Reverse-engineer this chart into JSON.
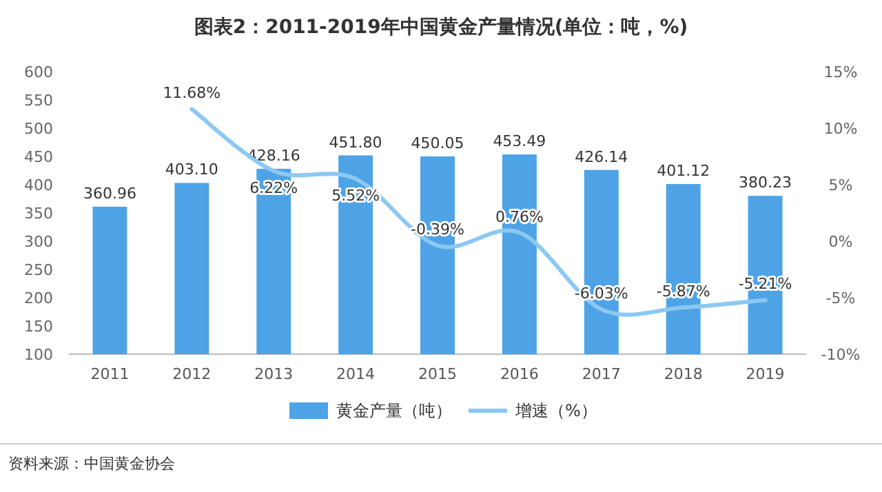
{
  "chart_data": {
    "type": "bar",
    "title": "图表2：2011-2019年中国黄金产量情况(单位：吨，%)",
    "categories": [
      "2011",
      "2012",
      "2013",
      "2014",
      "2015",
      "2016",
      "2017",
      "2018",
      "2019"
    ],
    "series": [
      {
        "name": "黄金产量（吨）",
        "color": "#4da3e6",
        "values": [
          360.96,
          403.1,
          428.16,
          451.8,
          450.05,
          453.49,
          426.14,
          401.12,
          380.23
        ],
        "value_labels": [
          "360.96",
          "403.10",
          "428.16",
          "451.80",
          "450.05",
          "453.49",
          "426.14",
          "401.12",
          "380.23"
        ]
      },
      {
        "name": "增速（%）",
        "type": "line",
        "axis": "y2",
        "color": "#8cc8f2",
        "values": [
          null,
          11.68,
          6.22,
          5.52,
          -0.39,
          0.76,
          -6.03,
          -5.87,
          -5.21
        ],
        "value_labels": [
          null,
          "11.68%",
          "6.22%",
          "5.52%",
          "-0.39%",
          "0.76%",
          "-6.03%",
          "-5.87%",
          "-5.21%"
        ]
      }
    ],
    "ylim": [
      100,
      600
    ],
    "yticks": [
      100,
      150,
      200,
      250,
      300,
      350,
      400,
      450,
      500,
      550,
      600
    ],
    "y2lim": [
      -10,
      15
    ],
    "y2ticks": [
      {
        "value": -10,
        "label": "-10%"
      },
      {
        "value": -5,
        "label": "-5%"
      },
      {
        "value": 0,
        "label": "0%"
      },
      {
        "value": 5,
        "label": "5%"
      },
      {
        "value": 10,
        "label": "10%"
      },
      {
        "value": 15,
        "label": "15%"
      }
    ],
    "legend": "bottom",
    "annotations": [
      "资料来源：中国黄金协会"
    ]
  }
}
